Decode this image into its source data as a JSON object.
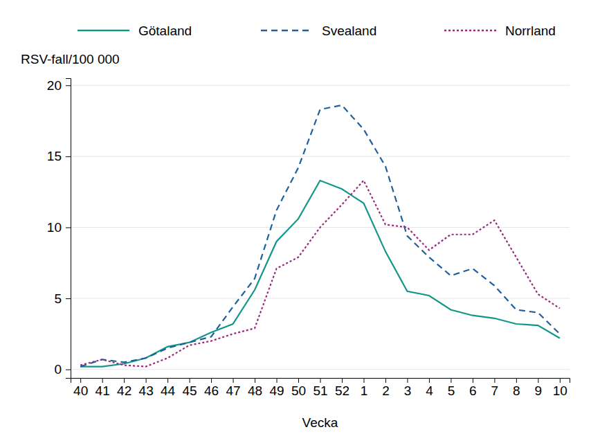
{
  "chart_data": {
    "type": "line",
    "y_label": "RSV-fall/100 000",
    "x_label": "Vecka",
    "categories": [
      "40",
      "41",
      "42",
      "43",
      "44",
      "45",
      "46",
      "47",
      "48",
      "49",
      "50",
      "51",
      "52",
      "1",
      "2",
      "3",
      "4",
      "5",
      "6",
      "7",
      "8",
      "9",
      "10"
    ],
    "series": [
      {
        "name": "Götaland",
        "color": "#13968a",
        "line_style": "solid",
        "values": [
          0.2,
          0.2,
          0.4,
          0.8,
          1.6,
          1.9,
          2.6,
          3.2,
          5.6,
          9.0,
          10.6,
          13.3,
          12.7,
          11.7,
          8.3,
          5.5,
          5.2,
          4.2,
          3.8,
          3.6,
          3.2,
          3.1,
          2.2
        ]
      },
      {
        "name": "Svealand",
        "color": "#1f5f9e",
        "line_style": "dashed",
        "values": [
          0.2,
          0.7,
          0.5,
          0.8,
          1.5,
          1.9,
          2.3,
          4.4,
          6.4,
          11.2,
          14.2,
          18.3,
          18.6,
          16.9,
          14.3,
          9.4,
          7.9,
          6.6,
          7.1,
          5.9,
          4.2,
          4.0,
          2.5
        ]
      },
      {
        "name": "Norrland",
        "color": "#992a7b",
        "line_style": "dotted",
        "values": [
          0.3,
          0.7,
          0.3,
          0.2,
          0.8,
          1.7,
          2.0,
          2.5,
          2.9,
          7.1,
          7.9,
          10.0,
          11.6,
          13.3,
          10.2,
          10.0,
          8.4,
          9.5,
          9.5,
          10.5,
          7.9,
          5.3,
          4.3
        ]
      }
    ],
    "ylim": [
      -0.6,
      20.5
    ],
    "yticks": [
      0,
      5,
      10,
      15,
      20
    ],
    "grid": true,
    "legend": "top"
  }
}
